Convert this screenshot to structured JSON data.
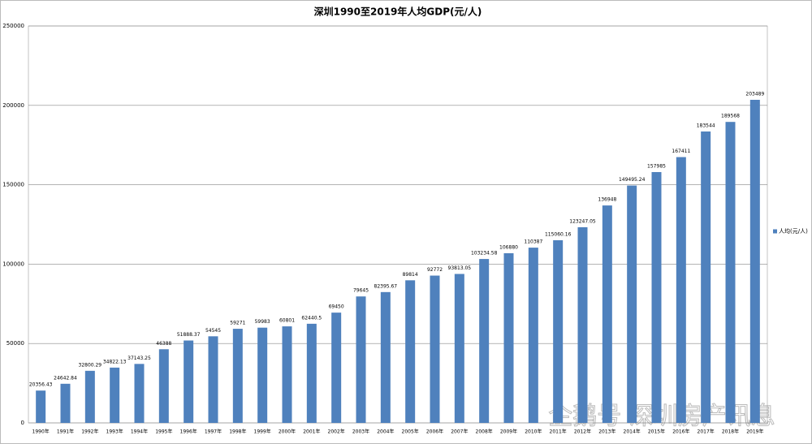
{
  "chart_data": {
    "type": "bar",
    "title": "深圳1990至2019年人均GDP(元/人)",
    "categories": [
      "1990年",
      "1991年",
      "1992年",
      "1993年",
      "1994年",
      "1995年",
      "1996年",
      "1997年",
      "1998年",
      "1999年",
      "2000年",
      "2001年",
      "2002年",
      "2003年",
      "2004年",
      "2005年",
      "2006年",
      "2007年",
      "2008年",
      "2009年",
      "2010年",
      "2011年",
      "2012年",
      "2013年",
      "2014年",
      "2015年",
      "2016年",
      "2017年",
      "2018年",
      "2019年"
    ],
    "series": [
      {
        "name": "人均(元/人)",
        "color": "#4f81bd",
        "values": [
          20356.43,
          24642.84,
          32800.29,
          34822.13,
          37143.25,
          46388,
          51888.37,
          54545,
          59271,
          59983,
          60801,
          62440.5,
          69450,
          79645,
          82395.67,
          89814,
          92772,
          93813.05,
          103234.58,
          106880,
          110387,
          115060.16,
          123247.05,
          136948,
          149495.24,
          157985,
          167411,
          183544,
          189568,
          203489
        ]
      }
    ],
    "ylim": [
      0,
      250000
    ],
    "yticks": [
      0,
      50000,
      100000,
      150000,
      200000,
      250000
    ],
    "grid": true,
    "legend": "right"
  },
  "watermark": "企鹅号 深圳房产讯息"
}
